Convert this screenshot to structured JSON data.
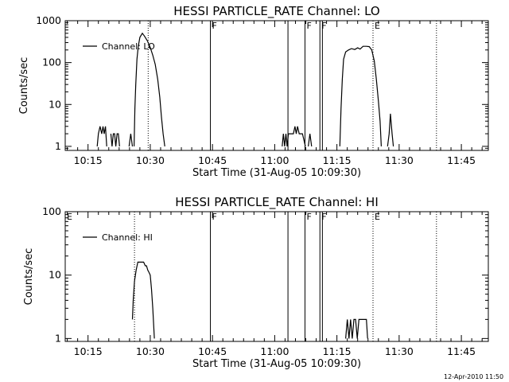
{
  "chart_data": [
    {
      "type": "line",
      "title": "HESSI PARTICLE_RATE Channel: LO",
      "xlabel": "Start Time (31-Aug-05 10:09:30)",
      "ylabel": "Counts/sec",
      "yscale": "log",
      "xlim_min": [
        0,
        39
      ],
      "ylim": [
        0.8,
        1000
      ],
      "xticks": [
        {
          "value": 5.5,
          "label": "10:15"
        },
        {
          "value": 20.5,
          "label": "10:30"
        },
        {
          "value": 35.5,
          "label": "10:45"
        },
        {
          "value": 50.5,
          "label": "11:00"
        },
        {
          "value": 65.5,
          "label": "11:15"
        },
        {
          "value": 80.5,
          "label": "11:30"
        },
        {
          "value": 95.5,
          "label": "11:45"
        }
      ],
      "yticks": [
        {
          "value": 1,
          "label": "1"
        },
        {
          "value": 10,
          "label": "10"
        },
        {
          "value": 100,
          "label": "100"
        },
        {
          "value": 1000,
          "label": "1000"
        }
      ],
      "legend": {
        "label": "Channel: LO",
        "position": "top-left"
      },
      "series": [
        {
          "name": "Channel: LO",
          "segments": [
            [
              [
                7.7,
                1
              ],
              [
                8.0,
                2
              ],
              [
                8.4,
                3
              ],
              [
                8.8,
                2
              ],
              [
                9.1,
                3
              ],
              [
                9.4,
                2
              ],
              [
                9.7,
                3
              ],
              [
                10.0,
                1
              ]
            ],
            [
              [
                11.0,
                2
              ],
              [
                11.3,
                1
              ],
              [
                11.6,
                2
              ],
              [
                11.9,
                2
              ],
              [
                12.2,
                1
              ],
              [
                12.5,
                2
              ],
              [
                12.8,
                2
              ],
              [
                13.1,
                1
              ]
            ],
            [
              [
                15.4,
                1
              ],
              [
                15.8,
                2
              ],
              [
                16.2,
                1
              ]
            ],
            [
              [
                16.6,
                1
              ],
              [
                16.8,
                8
              ],
              [
                17.0,
                30
              ],
              [
                17.3,
                120
              ],
              [
                17.6,
                240
              ],
              [
                18.0,
                400
              ],
              [
                18.6,
                500
              ],
              [
                19.1,
                430
              ],
              [
                19.8,
                330
              ],
              [
                20.5,
                230
              ],
              [
                21.1,
                150
              ],
              [
                21.7,
                90
              ],
              [
                22.3,
                40
              ],
              [
                22.8,
                15
              ],
              [
                23.2,
                5
              ],
              [
                23.6,
                2
              ],
              [
                24.0,
                1
              ]
            ],
            [
              [
                52.3,
                1
              ],
              [
                52.6,
                2
              ],
              [
                52.9,
                1
              ],
              [
                53.2,
                2
              ],
              [
                53.5,
                1
              ],
              [
                53.8,
                2
              ],
              [
                54.4,
                2
              ],
              [
                55.0,
                2
              ],
              [
                55.4,
                3
              ],
              [
                55.7,
                2
              ],
              [
                56.0,
                3
              ],
              [
                56.4,
                2
              ],
              [
                57.2,
                2
              ],
              [
                57.9,
                1
              ]
            ],
            [
              [
                58.6,
                1
              ],
              [
                59.0,
                2
              ],
              [
                59.4,
                1
              ]
            ],
            [
              [
                66.2,
                1
              ],
              [
                66.5,
                8
              ],
              [
                66.8,
                40
              ],
              [
                67.1,
                120
              ],
              [
                67.6,
                180
              ],
              [
                68.3,
                200
              ],
              [
                69.0,
                215
              ],
              [
                69.8,
                205
              ],
              [
                70.5,
                225
              ],
              [
                71.1,
                210
              ],
              [
                71.8,
                245
              ],
              [
                72.6,
                245
              ],
              [
                73.3,
                240
              ],
              [
                73.9,
                200
              ],
              [
                74.5,
                110
              ],
              [
                75.0,
                40
              ],
              [
                75.5,
                12
              ],
              [
                75.9,
                4
              ],
              [
                76.2,
                1
              ]
            ],
            [
              [
                77.7,
                1
              ],
              [
                78.1,
                2
              ],
              [
                78.4,
                6
              ],
              [
                78.8,
                2
              ],
              [
                79.1,
                1
              ]
            ]
          ]
        }
      ],
      "markers": [
        {
          "x": 20.0,
          "style": "dotted",
          "label": ""
        },
        {
          "x": 35.0,
          "style": "solid",
          "label": "F"
        },
        {
          "x": 53.7,
          "style": "solid",
          "label": ""
        },
        {
          "x": 57.8,
          "style": "solid",
          "label": "F"
        },
        {
          "x": 61.4,
          "style": "solid",
          "label": "F"
        },
        {
          "x": 62.0,
          "style": "solid",
          "label": ""
        },
        {
          "x": 74.2,
          "style": "dotted",
          "label": "E"
        },
        {
          "x": 89.5,
          "style": "dotted",
          "label": ""
        }
      ]
    },
    {
      "type": "line",
      "title": "HESSI PARTICLE_RATE Channel: HI",
      "xlabel": "Start Time (31-Aug-05 10:09:30)",
      "ylabel": "Counts/sec",
      "yscale": "log",
      "xlim_min": [
        0,
        39
      ],
      "ylim": [
        0.9,
        100
      ],
      "xticks": [
        {
          "value": 5.5,
          "label": "10:15"
        },
        {
          "value": 20.5,
          "label": "10:30"
        },
        {
          "value": 35.5,
          "label": "10:45"
        },
        {
          "value": 50.5,
          "label": "11:00"
        },
        {
          "value": 65.5,
          "label": "11:15"
        },
        {
          "value": 80.5,
          "label": "11:30"
        },
        {
          "value": 95.5,
          "label": "11:45"
        }
      ],
      "yticks": [
        {
          "value": 1,
          "label": "1"
        },
        {
          "value": 10,
          "label": "10"
        },
        {
          "value": 100,
          "label": "100"
        }
      ],
      "legend": {
        "label": "Channel: HI",
        "position": "top-left"
      },
      "series": [
        {
          "name": "Channel: HI",
          "segments": [
            [
              [
                16.2,
                2
              ],
              [
                16.4,
                4
              ],
              [
                16.7,
                8
              ],
              [
                17.1,
                12
              ],
              [
                17.5,
                16
              ],
              [
                18.2,
                16
              ],
              [
                18.9,
                16
              ],
              [
                19.3,
                14
              ],
              [
                19.6,
                14
              ],
              [
                19.9,
                12
              ],
              [
                20.2,
                11
              ],
              [
                20.5,
                10
              ],
              [
                20.8,
                6
              ],
              [
                21.1,
                3
              ],
              [
                21.5,
                1
              ]
            ],
            [
              [
                67.6,
                1
              ],
              [
                68.0,
                2
              ],
              [
                68.4,
                1
              ],
              [
                68.8,
                2
              ],
              [
                69.2,
                1
              ],
              [
                69.6,
                2
              ],
              [
                70.0,
                2
              ],
              [
                70.4,
                1
              ],
              [
                70.8,
                2
              ],
              [
                72.6,
                2
              ],
              [
                72.9,
                1
              ]
            ]
          ]
        }
      ],
      "markers": [
        {
          "x": 16.7,
          "style": "dotted",
          "label": ""
        },
        {
          "x": 35.0,
          "style": "solid",
          "label": "F"
        },
        {
          "x": 53.7,
          "style": "solid",
          "label": ""
        },
        {
          "x": 57.8,
          "style": "solid",
          "label": "F"
        },
        {
          "x": 61.4,
          "style": "solid",
          "label": "F"
        },
        {
          "x": 62.0,
          "style": "solid",
          "label": ""
        },
        {
          "x": 74.2,
          "style": "dotted",
          "label": "E"
        },
        {
          "x": 89.5,
          "style": "dotted",
          "label": ""
        }
      ],
      "corner_label": "E"
    }
  ],
  "timestamp": "12-Apr-2010 11:50"
}
